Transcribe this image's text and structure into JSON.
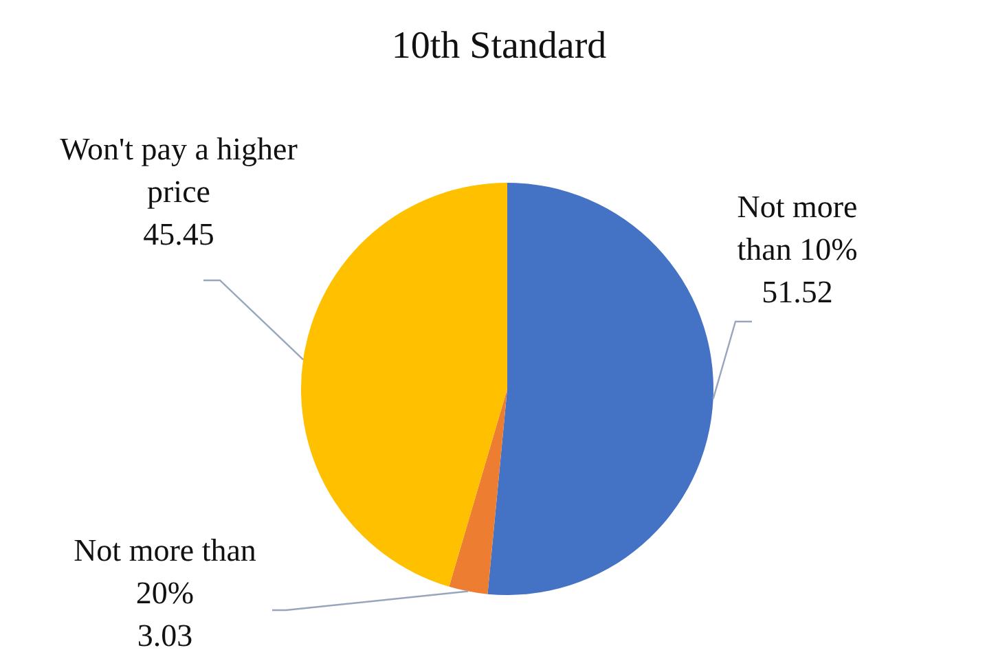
{
  "chart_data": {
    "type": "pie",
    "title": "10th Standard",
    "categories": [
      "Not more than 10%",
      "Not more than 20%",
      "Won't pay a higher price"
    ],
    "values": [
      51.52,
      3.03,
      45.45
    ],
    "colors": [
      "#4472c4",
      "#ed7d31",
      "#ffc000"
    ],
    "data_labels": true
  }
}
